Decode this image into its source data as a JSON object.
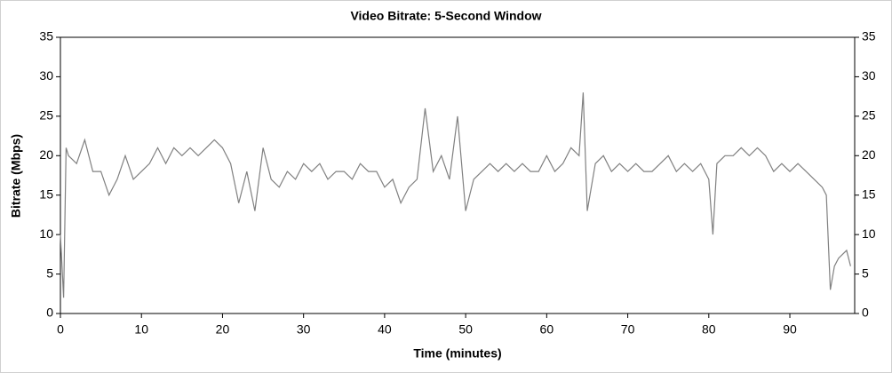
{
  "chart_data": {
    "type": "line",
    "title": "Video Bitrate: 5-Second Window",
    "x_label": "Time (minutes)",
    "y_label": "Bitrate (Mbps)",
    "color": "#808080",
    "xlim": [
      0,
      98
    ],
    "xticks": [
      0,
      10,
      20,
      30,
      40,
      50,
      60,
      70,
      80,
      90
    ],
    "ylim": [
      0,
      35
    ],
    "yticks": [
      0,
      5,
      10,
      15,
      20,
      25,
      30,
      35
    ],
    "x": [
      0,
      0.4,
      0.7,
      1,
      2,
      3,
      4,
      5,
      6,
      7,
      8,
      9,
      10,
      11,
      12,
      13,
      14,
      15,
      16,
      17,
      18,
      19,
      20,
      21,
      22,
      23,
      24,
      25,
      26,
      27,
      28,
      29,
      30,
      31,
      32,
      33,
      34,
      35,
      36,
      37,
      38,
      39,
      40,
      41,
      42,
      43,
      44,
      45,
      46,
      47,
      48,
      49,
      50,
      51,
      52,
      53,
      54,
      55,
      56,
      57,
      58,
      59,
      60,
      61,
      62,
      63,
      64,
      64.5,
      65,
      66,
      67,
      68,
      69,
      70,
      71,
      72,
      73,
      74,
      75,
      76,
      77,
      78,
      79,
      80,
      80.5,
      81,
      82,
      83,
      84,
      85,
      86,
      87,
      88,
      89,
      90,
      91,
      92,
      93,
      94,
      94.5,
      95,
      95.5,
      96,
      97,
      97.5
    ],
    "values": [
      10,
      2,
      21,
      20,
      19,
      22,
      18,
      18,
      15,
      17,
      20,
      17,
      18,
      19,
      21,
      19,
      21,
      20,
      21,
      20,
      21,
      22,
      21,
      19,
      14,
      18,
      13,
      21,
      17,
      16,
      18,
      17,
      19,
      18,
      19,
      17,
      18,
      18,
      17,
      19,
      18,
      18,
      16,
      17,
      14,
      16,
      17,
      26,
      18,
      20,
      17,
      25,
      13,
      17,
      18,
      19,
      18,
      19,
      18,
      19,
      18,
      18,
      20,
      18,
      19,
      21,
      20,
      28,
      13,
      19,
      20,
      18,
      19,
      18,
      19,
      18,
      18,
      19,
      20,
      18,
      19,
      18,
      19,
      17,
      10,
      19,
      20,
      20,
      21,
      20,
      21,
      20,
      18,
      19,
      18,
      19,
      18,
      17,
      16,
      15,
      3,
      6,
      7,
      8,
      6
    ]
  }
}
